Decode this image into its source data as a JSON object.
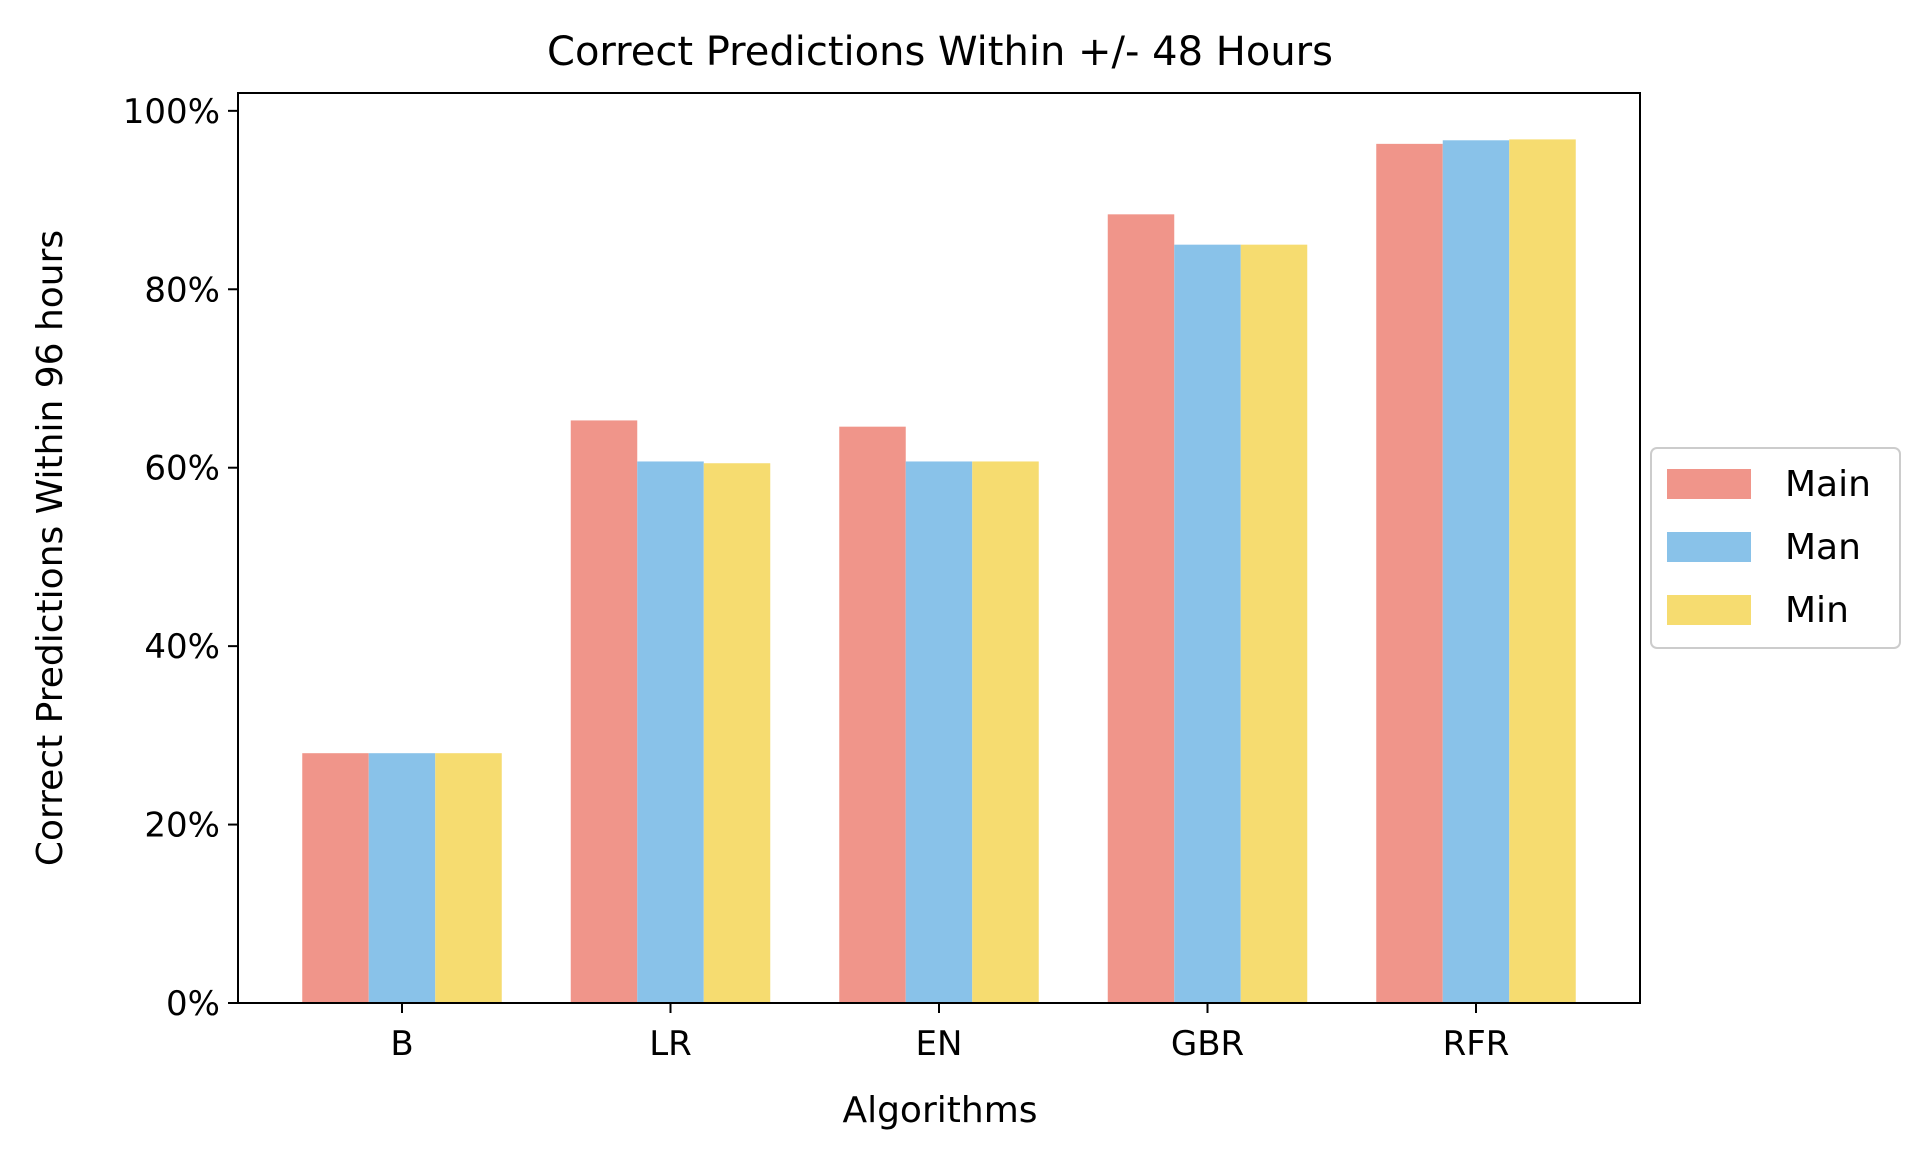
{
  "chart_data": {
    "type": "bar",
    "title": "Correct Predictions Within +/- 48 Hours",
    "xlabel": "Algorithms",
    "ylabel": "Correct Predictions Within 96 hours",
    "categories": [
      "B",
      "LR",
      "EN",
      "GBR",
      "RFR"
    ],
    "ylim": [
      0,
      102
    ],
    "yticks": [
      0,
      20,
      40,
      60,
      80,
      100
    ],
    "ytick_labels": [
      "0%",
      "20%",
      "40%",
      "60%",
      "80%",
      "100%"
    ],
    "grid": false,
    "legend_position": "center-right-outside",
    "series": [
      {
        "name": "Main",
        "color": "#f0958a",
        "values": [
          28.0,
          65.3,
          64.6,
          88.4,
          96.3
        ]
      },
      {
        "name": "Man",
        "color": "#89c2e9",
        "values": [
          28.0,
          60.7,
          60.7,
          85.0,
          96.7
        ]
      },
      {
        "name": "Min",
        "color": "#f6dc70",
        "values": [
          28.0,
          60.5,
          60.7,
          85.0,
          96.8
        ]
      }
    ]
  }
}
